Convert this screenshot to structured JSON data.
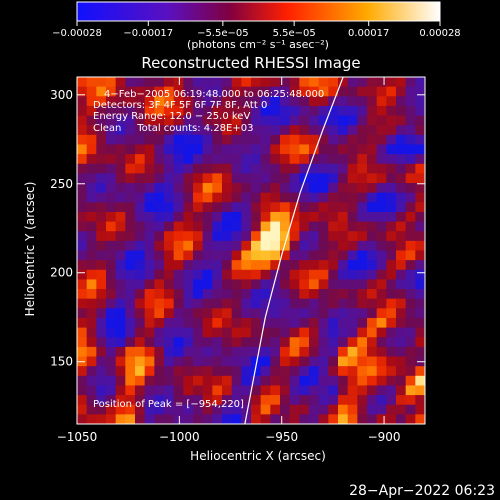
{
  "colorbar": {
    "ticks": [
      {
        "value": -0.00028,
        "label": "−0.00028"
      },
      {
        "value": -0.00017,
        "label": "−0.00017"
      },
      {
        "value": -5.5e-05,
        "label": "−5.5e−05"
      },
      {
        "value": 5.5e-05,
        "label": "5.5e−05"
      },
      {
        "value": 0.00017,
        "label": "0.00017"
      },
      {
        "value": 0.00028,
        "label": "0.00028"
      }
    ],
    "units": "(photons cm⁻² s⁻¹ asec⁻²)",
    "range": [
      -0.00028,
      0.00028
    ],
    "colors": [
      "#1010ff",
      "#5a10c0",
      "#800040",
      "#ff2000",
      "#ffaa00",
      "#ffffff"
    ]
  },
  "chart_data": {
    "type": "heatmap",
    "title": "Reconstructed RHESSI Image",
    "xlabel": "Heliocentric X (arcsec)",
    "ylabel": "Heliocentric Y (arcsec)",
    "xlim": [
      -1050,
      -880
    ],
    "ylim": [
      115,
      310
    ],
    "xticks": [
      {
        "value": -1050,
        "label": "−1050"
      },
      {
        "value": -1000,
        "label": "−1000"
      },
      {
        "value": -950,
        "label": "−950"
      },
      {
        "value": -900,
        "label": "−900"
      }
    ],
    "yticks": [
      {
        "value": 150,
        "label": "150"
      },
      {
        "value": 200,
        "label": "200"
      },
      {
        "value": 250,
        "label": "250"
      },
      {
        "value": 300,
        "label": "300"
      }
    ],
    "peak": {
      "x": -954,
      "y": 220
    },
    "limb": [
      [
        -968,
        115
      ],
      [
        -958,
        175
      ],
      [
        -950,
        210
      ],
      [
        -941,
        245
      ],
      [
        -930,
        280
      ],
      [
        -920,
        310
      ]
    ],
    "annotations": [
      "4−Feb−2005 06:19:48.000 to 06:25:48.000",
      "Detectors: 3F 4F 5F 6F 7F 8F, Att 0",
      "Energy Range: 12.0 − 25.0 keV",
      "Clean     Total counts: 4.28E+03"
    ],
    "peak_label": "Position of Peak = [−954,220]"
  },
  "timestamp": "28−Apr−2022 06:23"
}
